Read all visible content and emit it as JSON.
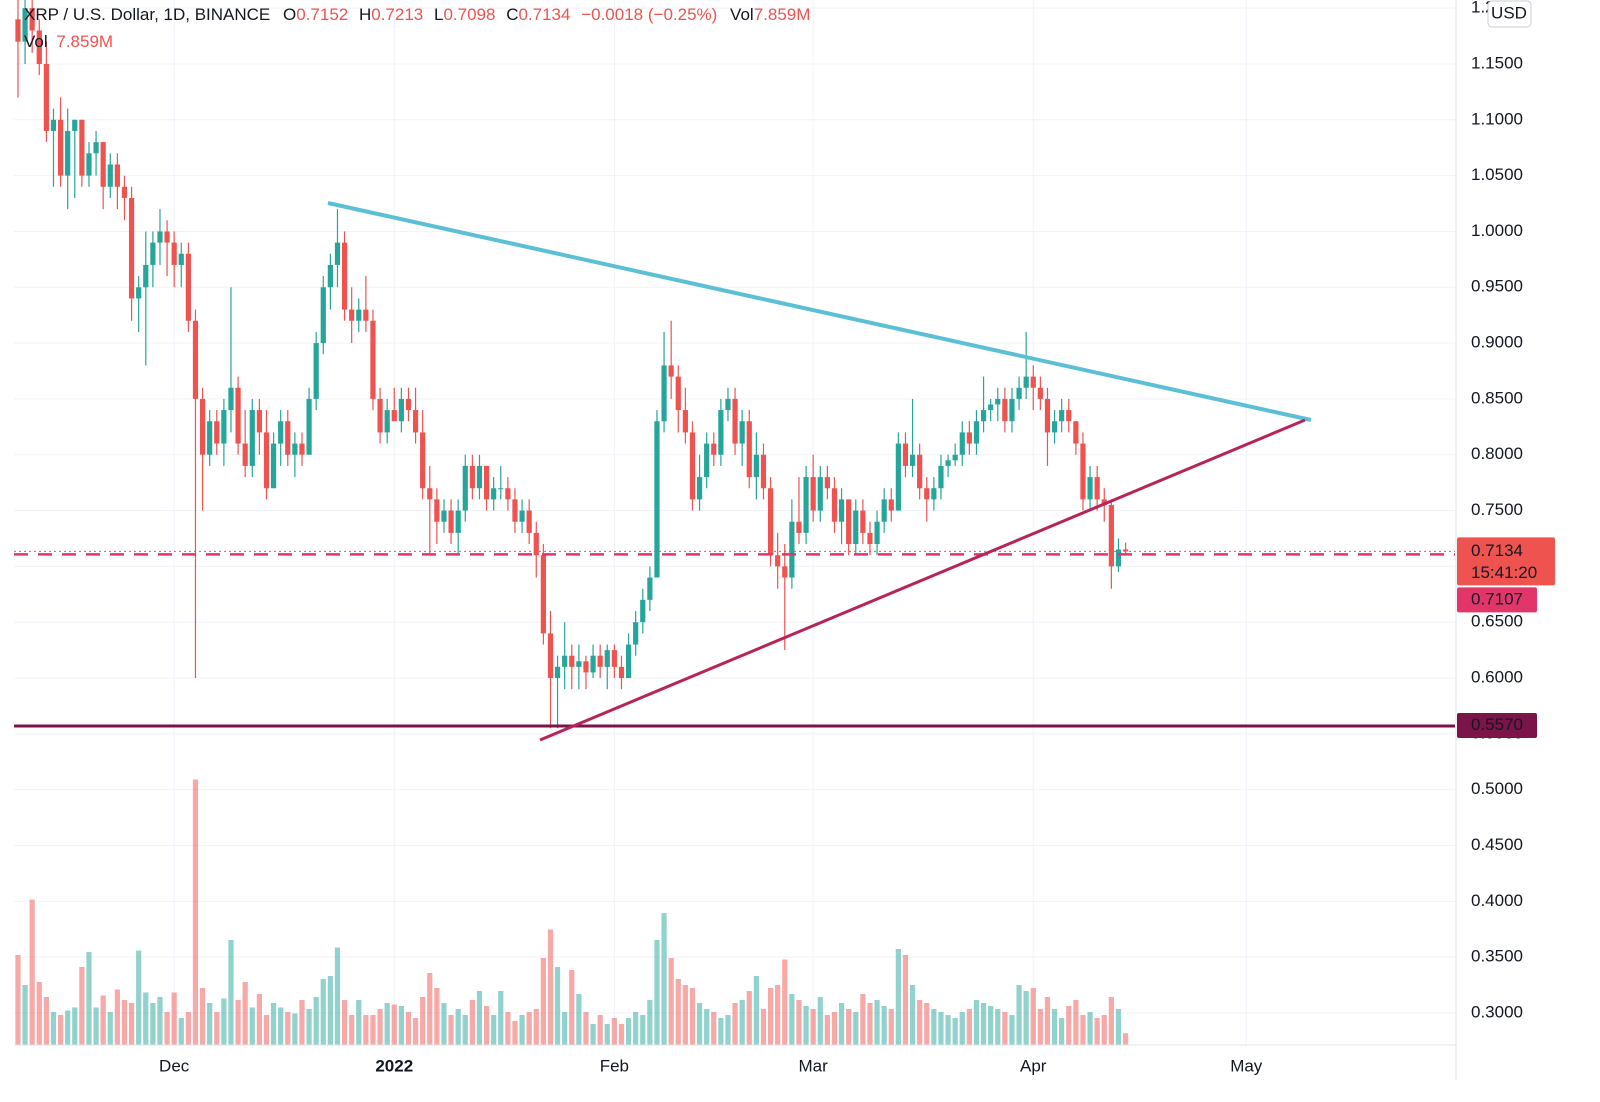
{
  "chart_data": {
    "type": "candlestick",
    "title": "XRP / U.S. Dollar, 1D, BINANCE",
    "legend_fields": [
      {
        "label": "O",
        "value": 0.7152
      },
      {
        "label": "H",
        "value": 0.7213
      },
      {
        "label": "L",
        "value": 0.7098
      },
      {
        "label": "C",
        "value": 0.7134
      }
    ],
    "change": "−0.0018 (−0.25%)",
    "volume_label": "Vol",
    "volume_text": "7.859M",
    "currency": "USD",
    "up_color": "#26a69a",
    "down_color": "#ef5350",
    "grid": true,
    "xlim": [
      -0.56,
      202.4
    ],
    "xticks": [
      {
        "value": 22,
        "label": "Dec"
      },
      {
        "value": 53,
        "label": "2022"
      },
      {
        "value": 84,
        "label": "Feb"
      },
      {
        "value": 112,
        "label": "Mar"
      },
      {
        "value": 143,
        "label": "Apr"
      },
      {
        "value": 173,
        "label": "May"
      }
    ],
    "ylim": [
      0.2713,
      1.2073
    ],
    "yticks": [
      {
        "value": 0.3,
        "label": "0.3000"
      },
      {
        "value": 0.35,
        "label": "0.3500"
      },
      {
        "value": 0.4,
        "label": "0.4000"
      },
      {
        "value": 0.45,
        "label": "0.4500"
      },
      {
        "value": 0.5,
        "label": "0.5000"
      },
      {
        "value": 0.55,
        "label": "0.5500"
      },
      {
        "value": 0.6,
        "label": "0.6000"
      },
      {
        "value": 0.65,
        "label": "0.6500"
      },
      {
        "value": 0.7,
        "label": "0.7000"
      },
      {
        "value": 0.75,
        "label": "0.7500"
      },
      {
        "value": 0.8,
        "label": "0.8000"
      },
      {
        "value": 0.85,
        "label": "0.8500"
      },
      {
        "value": 0.9,
        "label": "0.9000"
      },
      {
        "value": 0.95,
        "label": "0.9500"
      },
      {
        "value": 1.0,
        "label": "1.0000"
      },
      {
        "value": 1.05,
        "label": "1.0500"
      },
      {
        "value": 1.1,
        "label": "1.1000"
      },
      {
        "value": 1.15,
        "label": "1.1500"
      },
      {
        "value": 1.2,
        "label": "1.2000"
      }
    ],
    "volume_ylim": [
      0,
      200
    ],
    "price_lines": [
      {
        "value": 0.7134,
        "countdown": "15:41:20",
        "color": "#ef5350",
        "style": "dotted"
      },
      {
        "value": 0.7107,
        "color": "#e2366a",
        "style": "dashed"
      },
      {
        "value": 0.557,
        "label": "0.5570",
        "color": "#7b1448",
        "style": "solid"
      }
    ],
    "ohlc": [
      [
        1.19,
        1.22,
        1.12,
        1.17
      ],
      [
        1.17,
        1.21,
        1.15,
        1.2
      ],
      [
        1.2,
        1.21,
        1.16,
        1.18
      ],
      [
        1.18,
        1.19,
        1.14,
        1.15
      ],
      [
        1.15,
        1.17,
        1.08,
        1.09
      ],
      [
        1.09,
        1.11,
        1.04,
        1.1
      ],
      [
        1.1,
        1.12,
        1.04,
        1.05
      ],
      [
        1.05,
        1.11,
        1.02,
        1.09
      ],
      [
        1.09,
        1.1,
        1.03,
        1.1
      ],
      [
        1.1,
        1.1,
        1.04,
        1.05
      ],
      [
        1.05,
        1.08,
        1.04,
        1.07
      ],
      [
        1.07,
        1.09,
        1.05,
        1.08
      ],
      [
        1.08,
        1.08,
        1.02,
        1.04
      ],
      [
        1.04,
        1.07,
        1.03,
        1.06
      ],
      [
        1.06,
        1.07,
        1.02,
        1.04
      ],
      [
        1.04,
        1.05,
        1.01,
        1.03
      ],
      [
        1.03,
        1.04,
        0.92,
        0.94
      ],
      [
        0.94,
        0.96,
        0.91,
        0.95
      ],
      [
        0.95,
        1.0,
        0.88,
        0.97
      ],
      [
        0.97,
        1.0,
        0.95,
        0.99
      ],
      [
        0.99,
        1.02,
        0.97,
        1.0
      ],
      [
        1.0,
        1.01,
        0.96,
        0.99
      ],
      [
        0.99,
        1.0,
        0.95,
        0.97
      ],
      [
        0.97,
        0.99,
        0.95,
        0.98
      ],
      [
        0.98,
        0.99,
        0.91,
        0.92
      ],
      [
        0.92,
        0.93,
        0.6,
        0.85
      ],
      [
        0.85,
        0.86,
        0.75,
        0.8
      ],
      [
        0.8,
        0.84,
        0.79,
        0.83
      ],
      [
        0.83,
        0.84,
        0.8,
        0.81
      ],
      [
        0.81,
        0.85,
        0.79,
        0.84
      ],
      [
        0.84,
        0.95,
        0.82,
        0.86
      ],
      [
        0.86,
        0.87,
        0.8,
        0.81
      ],
      [
        0.81,
        0.84,
        0.78,
        0.79
      ],
      [
        0.79,
        0.85,
        0.78,
        0.84
      ],
      [
        0.84,
        0.85,
        0.8,
        0.82
      ],
      [
        0.82,
        0.84,
        0.76,
        0.77
      ],
      [
        0.77,
        0.82,
        0.77,
        0.81
      ],
      [
        0.81,
        0.84,
        0.79,
        0.83
      ],
      [
        0.83,
        0.84,
        0.79,
        0.8
      ],
      [
        0.8,
        0.82,
        0.78,
        0.81
      ],
      [
        0.81,
        0.82,
        0.79,
        0.8
      ],
      [
        0.8,
        0.86,
        0.8,
        0.85
      ],
      [
        0.85,
        0.91,
        0.84,
        0.9
      ],
      [
        0.9,
        0.96,
        0.89,
        0.95
      ],
      [
        0.95,
        0.98,
        0.93,
        0.97
      ],
      [
        0.97,
        1.02,
        0.95,
        0.99
      ],
      [
        0.99,
        1.0,
        0.92,
        0.93
      ],
      [
        0.93,
        0.95,
        0.9,
        0.92
      ],
      [
        0.92,
        0.94,
        0.91,
        0.93
      ],
      [
        0.93,
        0.96,
        0.91,
        0.92
      ],
      [
        0.92,
        0.93,
        0.84,
        0.85
      ],
      [
        0.85,
        0.86,
        0.81,
        0.82
      ],
      [
        0.82,
        0.85,
        0.81,
        0.84
      ],
      [
        0.84,
        0.86,
        0.83,
        0.83
      ],
      [
        0.83,
        0.86,
        0.82,
        0.85
      ],
      [
        0.85,
        0.86,
        0.83,
        0.84
      ],
      [
        0.84,
        0.86,
        0.81,
        0.82
      ],
      [
        0.82,
        0.84,
        0.76,
        0.77
      ],
      [
        0.77,
        0.79,
        0.71,
        0.76
      ],
      [
        0.76,
        0.77,
        0.72,
        0.74
      ],
      [
        0.74,
        0.76,
        0.73,
        0.75
      ],
      [
        0.75,
        0.76,
        0.72,
        0.73
      ],
      [
        0.73,
        0.76,
        0.71,
        0.75
      ],
      [
        0.75,
        0.8,
        0.74,
        0.79
      ],
      [
        0.79,
        0.8,
        0.76,
        0.77
      ],
      [
        0.77,
        0.8,
        0.76,
        0.79
      ],
      [
        0.79,
        0.79,
        0.75,
        0.76
      ],
      [
        0.76,
        0.78,
        0.75,
        0.77
      ],
      [
        0.77,
        0.79,
        0.76,
        0.77
      ],
      [
        0.77,
        0.78,
        0.75,
        0.76
      ],
      [
        0.76,
        0.77,
        0.73,
        0.74
      ],
      [
        0.74,
        0.76,
        0.73,
        0.75
      ],
      [
        0.75,
        0.76,
        0.72,
        0.73
      ],
      [
        0.73,
        0.74,
        0.69,
        0.71
      ],
      [
        0.71,
        0.72,
        0.63,
        0.64
      ],
      [
        0.64,
        0.66,
        0.555,
        0.6
      ],
      [
        0.6,
        0.62,
        0.555,
        0.61
      ],
      [
        0.61,
        0.65,
        0.59,
        0.62
      ],
      [
        0.62,
        0.63,
        0.59,
        0.61
      ],
      [
        0.61,
        0.63,
        0.59,
        0.615
      ],
      [
        0.615,
        0.62,
        0.59,
        0.605
      ],
      [
        0.605,
        0.63,
        0.6,
        0.62
      ],
      [
        0.62,
        0.63,
        0.6,
        0.61
      ],
      [
        0.61,
        0.63,
        0.59,
        0.625
      ],
      [
        0.625,
        0.63,
        0.6,
        0.61
      ],
      [
        0.61,
        0.62,
        0.59,
        0.6
      ],
      [
        0.6,
        0.64,
        0.6,
        0.63
      ],
      [
        0.63,
        0.66,
        0.62,
        0.65
      ],
      [
        0.65,
        0.68,
        0.64,
        0.67
      ],
      [
        0.67,
        0.7,
        0.66,
        0.69
      ],
      [
        0.69,
        0.84,
        0.69,
        0.83
      ],
      [
        0.83,
        0.91,
        0.82,
        0.88
      ],
      [
        0.88,
        0.92,
        0.85,
        0.87
      ],
      [
        0.87,
        0.88,
        0.82,
        0.84
      ],
      [
        0.84,
        0.86,
        0.81,
        0.82
      ],
      [
        0.82,
        0.83,
        0.75,
        0.76
      ],
      [
        0.76,
        0.8,
        0.75,
        0.78
      ],
      [
        0.78,
        0.82,
        0.77,
        0.81
      ],
      [
        0.81,
        0.82,
        0.79,
        0.8
      ],
      [
        0.8,
        0.85,
        0.79,
        0.84
      ],
      [
        0.84,
        0.86,
        0.83,
        0.85
      ],
      [
        0.85,
        0.86,
        0.8,
        0.81
      ],
      [
        0.81,
        0.84,
        0.79,
        0.83
      ],
      [
        0.83,
        0.84,
        0.77,
        0.78
      ],
      [
        0.78,
        0.82,
        0.76,
        0.8
      ],
      [
        0.8,
        0.81,
        0.76,
        0.77
      ],
      [
        0.77,
        0.78,
        0.7,
        0.71
      ],
      [
        0.71,
        0.73,
        0.68,
        0.7
      ],
      [
        0.7,
        0.72,
        0.625,
        0.69
      ],
      [
        0.69,
        0.76,
        0.68,
        0.74
      ],
      [
        0.74,
        0.78,
        0.72,
        0.73
      ],
      [
        0.73,
        0.79,
        0.72,
        0.78
      ],
      [
        0.78,
        0.8,
        0.74,
        0.75
      ],
      [
        0.75,
        0.79,
        0.74,
        0.78
      ],
      [
        0.78,
        0.79,
        0.76,
        0.77
      ],
      [
        0.77,
        0.78,
        0.73,
        0.74
      ],
      [
        0.74,
        0.77,
        0.72,
        0.76
      ],
      [
        0.76,
        0.76,
        0.71,
        0.72
      ],
      [
        0.72,
        0.76,
        0.71,
        0.75
      ],
      [
        0.75,
        0.76,
        0.72,
        0.73
      ],
      [
        0.73,
        0.74,
        0.71,
        0.72
      ],
      [
        0.72,
        0.75,
        0.71,
        0.74
      ],
      [
        0.74,
        0.77,
        0.73,
        0.76
      ],
      [
        0.76,
        0.77,
        0.74,
        0.75
      ],
      [
        0.75,
        0.82,
        0.75,
        0.81
      ],
      [
        0.81,
        0.82,
        0.78,
        0.79
      ],
      [
        0.79,
        0.85,
        0.78,
        0.8
      ],
      [
        0.8,
        0.81,
        0.76,
        0.77
      ],
      [
        0.77,
        0.78,
        0.74,
        0.76
      ],
      [
        0.76,
        0.78,
        0.75,
        0.77
      ],
      [
        0.77,
        0.8,
        0.76,
        0.79
      ],
      [
        0.79,
        0.8,
        0.78,
        0.795
      ],
      [
        0.795,
        0.81,
        0.79,
        0.8
      ],
      [
        0.8,
        0.83,
        0.79,
        0.82
      ],
      [
        0.82,
        0.83,
        0.8,
        0.81
      ],
      [
        0.81,
        0.84,
        0.8,
        0.83
      ],
      [
        0.83,
        0.87,
        0.82,
        0.84
      ],
      [
        0.84,
        0.85,
        0.83,
        0.845
      ],
      [
        0.845,
        0.86,
        0.83,
        0.85
      ],
      [
        0.85,
        0.86,
        0.82,
        0.83
      ],
      [
        0.83,
        0.86,
        0.82,
        0.85
      ],
      [
        0.85,
        0.87,
        0.84,
        0.86
      ],
      [
        0.86,
        0.91,
        0.85,
        0.87
      ],
      [
        0.87,
        0.88,
        0.84,
        0.86
      ],
      [
        0.86,
        0.87,
        0.84,
        0.85
      ],
      [
        0.85,
        0.86,
        0.79,
        0.82
      ],
      [
        0.82,
        0.84,
        0.81,
        0.83
      ],
      [
        0.83,
        0.85,
        0.82,
        0.84
      ],
      [
        0.84,
        0.85,
        0.82,
        0.83
      ],
      [
        0.83,
        0.83,
        0.8,
        0.81
      ],
      [
        0.81,
        0.82,
        0.75,
        0.76
      ],
      [
        0.76,
        0.79,
        0.75,
        0.78
      ],
      [
        0.78,
        0.79,
        0.75,
        0.76
      ],
      [
        0.76,
        0.77,
        0.74,
        0.755
      ],
      [
        0.755,
        0.76,
        0.68,
        0.7
      ],
      [
        0.7,
        0.725,
        0.695,
        0.7152
      ],
      [
        0.7152,
        0.7213,
        0.7098,
        0.7134
      ]
    ],
    "volume": [
      60,
      40,
      97,
      42,
      32,
      22,
      20,
      23,
      25,
      52,
      62,
      25,
      33,
      22,
      37,
      30,
      28,
      63,
      35,
      28,
      32,
      22,
      35,
      18,
      22,
      177,
      38,
      28,
      22,
      31,
      70,
      30,
      42,
      25,
      34,
      20,
      28,
      25,
      22,
      21,
      30,
      24,
      32,
      44,
      46,
      65,
      30,
      20,
      30,
      20,
      20,
      24,
      28,
      27,
      26,
      22,
      18,
      32,
      48,
      38,
      28,
      20,
      24,
      20,
      30,
      36,
      26,
      20,
      36,
      22,
      16,
      20,
      22,
      24,
      58,
      77,
      52,
      22,
      50,
      34,
      22,
      14,
      20,
      14,
      18,
      14,
      18,
      22,
      20,
      30,
      70,
      88,
      58,
      44,
      40,
      38,
      28,
      24,
      22,
      18,
      20,
      28,
      30,
      36,
      46,
      24,
      38,
      40,
      57,
      34,
      30,
      26,
      24,
      32,
      20,
      22,
      28,
      24,
      22,
      34,
      28,
      30,
      26,
      24,
      64,
      60,
      40,
      30,
      28,
      24,
      22,
      20,
      18,
      22,
      24,
      30,
      28,
      26,
      24,
      22,
      20,
      40,
      36,
      38,
      24,
      32,
      24,
      18,
      26,
      30,
      20,
      22,
      18,
      20,
      32,
      24,
      7.859
    ]
  }
}
